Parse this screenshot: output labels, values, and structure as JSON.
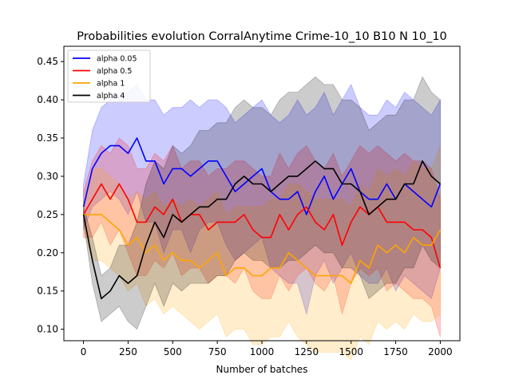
{
  "chart_data": {
    "type": "line",
    "title": "Probabilities evolution CorralAnytime Crime-10_10 B10 N 10_10",
    "xlabel": "Number of batches",
    "ylabel": "",
    "xlim": [
      -110,
      2110
    ],
    "ylim": [
      0.085,
      0.47
    ],
    "xticks": [
      0,
      250,
      500,
      750,
      1000,
      1250,
      1500,
      1750,
      2000
    ],
    "yticks": [
      0.1,
      0.15,
      0.2,
      0.25,
      0.3,
      0.35,
      0.4,
      0.45
    ],
    "grid": false,
    "legend": "top-left",
    "x": [
      0,
      50,
      100,
      150,
      200,
      250,
      300,
      350,
      400,
      450,
      500,
      550,
      600,
      650,
      700,
      750,
      800,
      850,
      900,
      950,
      1000,
      1050,
      1100,
      1150,
      1200,
      1250,
      1300,
      1350,
      1400,
      1450,
      1500,
      1550,
      1600,
      1650,
      1700,
      1750,
      1800,
      1850,
      1900,
      1950,
      2000
    ],
    "series": [
      {
        "name": "alpha 0.05",
        "color": "#0000ff",
        "values": [
          0.26,
          0.31,
          0.33,
          0.34,
          0.34,
          0.33,
          0.35,
          0.32,
          0.32,
          0.29,
          0.31,
          0.31,
          0.3,
          0.31,
          0.32,
          0.32,
          0.3,
          0.28,
          0.29,
          0.3,
          0.31,
          0.28,
          0.27,
          0.27,
          0.28,
          0.25,
          0.28,
          0.3,
          0.27,
          0.29,
          0.31,
          0.28,
          0.27,
          0.27,
          0.29,
          0.27,
          0.29,
          0.28,
          0.27,
          0.26,
          0.29
        ],
        "upper": [
          0.29,
          0.36,
          0.39,
          0.4,
          0.41,
          0.41,
          0.42,
          0.4,
          0.4,
          0.38,
          0.39,
          0.39,
          0.4,
          0.39,
          0.4,
          0.4,
          0.39,
          0.37,
          0.38,
          0.39,
          0.4,
          0.38,
          0.37,
          0.38,
          0.4,
          0.38,
          0.39,
          0.41,
          0.38,
          0.4,
          0.42,
          0.39,
          0.38,
          0.38,
          0.4,
          0.39,
          0.41,
          0.4,
          0.39,
          0.38,
          0.4
        ],
        "lower": [
          0.23,
          0.26,
          0.27,
          0.28,
          0.27,
          0.25,
          0.28,
          0.24,
          0.24,
          0.2,
          0.23,
          0.23,
          0.2,
          0.23,
          0.24,
          0.24,
          0.21,
          0.19,
          0.2,
          0.21,
          0.22,
          0.18,
          0.17,
          0.16,
          0.16,
          0.12,
          0.17,
          0.19,
          0.16,
          0.18,
          0.2,
          0.17,
          0.16,
          0.16,
          0.18,
          0.15,
          0.17,
          0.16,
          0.15,
          0.14,
          0.18
        ]
      },
      {
        "name": "alpha 0.5",
        "color": "#ff0000",
        "values": [
          0.25,
          0.27,
          0.29,
          0.27,
          0.29,
          0.27,
          0.24,
          0.24,
          0.26,
          0.25,
          0.27,
          0.24,
          0.25,
          0.25,
          0.23,
          0.24,
          0.24,
          0.24,
          0.25,
          0.23,
          0.22,
          0.22,
          0.25,
          0.23,
          0.25,
          0.26,
          0.24,
          0.23,
          0.25,
          0.21,
          0.24,
          0.26,
          0.25,
          0.26,
          0.24,
          0.24,
          0.24,
          0.23,
          0.23,
          0.22,
          0.18
        ],
        "upper": [
          0.28,
          0.32,
          0.34,
          0.33,
          0.35,
          0.34,
          0.31,
          0.31,
          0.33,
          0.32,
          0.34,
          0.31,
          0.32,
          0.32,
          0.3,
          0.31,
          0.31,
          0.32,
          0.32,
          0.31,
          0.3,
          0.3,
          0.33,
          0.31,
          0.33,
          0.34,
          0.32,
          0.31,
          0.33,
          0.3,
          0.32,
          0.34,
          0.33,
          0.34,
          0.33,
          0.32,
          0.33,
          0.32,
          0.32,
          0.31,
          0.27
        ],
        "lower": [
          0.22,
          0.22,
          0.24,
          0.21,
          0.23,
          0.2,
          0.17,
          0.17,
          0.19,
          0.18,
          0.2,
          0.17,
          0.18,
          0.18,
          0.16,
          0.17,
          0.17,
          0.16,
          0.18,
          0.15,
          0.14,
          0.14,
          0.17,
          0.15,
          0.17,
          0.18,
          0.16,
          0.15,
          0.17,
          0.12,
          0.16,
          0.18,
          0.17,
          0.18,
          0.15,
          0.16,
          0.15,
          0.14,
          0.14,
          0.13,
          0.09
        ]
      },
      {
        "name": "alpha 1",
        "color": "#ffa500",
        "values": [
          0.25,
          0.25,
          0.25,
          0.24,
          0.23,
          0.21,
          0.22,
          0.2,
          0.21,
          0.19,
          0.2,
          0.19,
          0.19,
          0.18,
          0.19,
          0.2,
          0.17,
          0.18,
          0.18,
          0.17,
          0.17,
          0.18,
          0.18,
          0.2,
          0.19,
          0.18,
          0.17,
          0.17,
          0.17,
          0.17,
          0.16,
          0.19,
          0.18,
          0.21,
          0.2,
          0.21,
          0.2,
          0.22,
          0.21,
          0.21,
          0.23
        ],
        "upper": [
          0.27,
          0.31,
          0.31,
          0.3,
          0.29,
          0.27,
          0.28,
          0.27,
          0.28,
          0.26,
          0.27,
          0.26,
          0.27,
          0.26,
          0.27,
          0.28,
          0.25,
          0.26,
          0.26,
          0.26,
          0.26,
          0.27,
          0.27,
          0.29,
          0.29,
          0.28,
          0.27,
          0.27,
          0.27,
          0.27,
          0.26,
          0.29,
          0.28,
          0.31,
          0.3,
          0.31,
          0.3,
          0.32,
          0.31,
          0.31,
          0.34
        ],
        "lower": [
          0.23,
          0.19,
          0.19,
          0.18,
          0.17,
          0.15,
          0.16,
          0.13,
          0.14,
          0.12,
          0.13,
          0.12,
          0.11,
          0.1,
          0.11,
          0.12,
          0.09,
          0.1,
          0.1,
          0.08,
          0.08,
          0.09,
          0.09,
          0.11,
          0.09,
          0.08,
          0.07,
          0.07,
          0.07,
          0.07,
          0.06,
          0.09,
          0.08,
          0.11,
          0.1,
          0.11,
          0.1,
          0.12,
          0.11,
          0.11,
          0.12
        ]
      },
      {
        "name": "alpha 4",
        "color": "#000000",
        "values": [
          0.25,
          0.19,
          0.14,
          0.15,
          0.17,
          0.16,
          0.17,
          0.21,
          0.24,
          0.22,
          0.25,
          0.24,
          0.25,
          0.26,
          0.26,
          0.27,
          0.27,
          0.29,
          0.3,
          0.29,
          0.29,
          0.28,
          0.29,
          0.3,
          0.3,
          0.31,
          0.32,
          0.31,
          0.31,
          0.29,
          0.29,
          0.28,
          0.25,
          0.26,
          0.27,
          0.27,
          0.29,
          0.29,
          0.32,
          0.3,
          0.29
        ],
        "upper": [
          0.26,
          0.22,
          0.17,
          0.18,
          0.21,
          0.21,
          0.24,
          0.29,
          0.32,
          0.31,
          0.34,
          0.33,
          0.34,
          0.36,
          0.36,
          0.37,
          0.37,
          0.39,
          0.4,
          0.39,
          0.39,
          0.38,
          0.4,
          0.41,
          0.41,
          0.42,
          0.43,
          0.42,
          0.42,
          0.4,
          0.4,
          0.39,
          0.36,
          0.37,
          0.38,
          0.38,
          0.4,
          0.4,
          0.43,
          0.41,
          0.4
        ],
        "lower": [
          0.24,
          0.16,
          0.11,
          0.12,
          0.13,
          0.11,
          0.1,
          0.13,
          0.16,
          0.13,
          0.16,
          0.15,
          0.16,
          0.16,
          0.16,
          0.17,
          0.17,
          0.19,
          0.2,
          0.19,
          0.19,
          0.18,
          0.18,
          0.19,
          0.19,
          0.2,
          0.21,
          0.2,
          0.2,
          0.18,
          0.18,
          0.17,
          0.14,
          0.15,
          0.16,
          0.16,
          0.18,
          0.18,
          0.21,
          0.19,
          0.18
        ]
      }
    ]
  }
}
